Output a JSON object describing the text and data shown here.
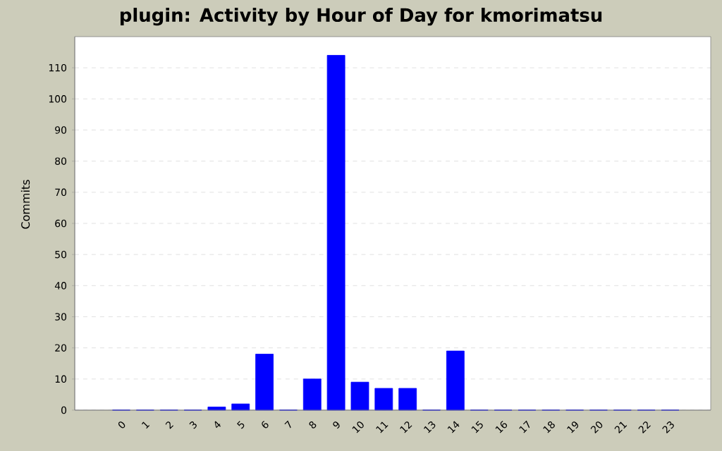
{
  "chart_data": {
    "type": "bar",
    "title": "plugin: Activity by Hour of Day for kmorimatsu",
    "ylabel": "Commits",
    "categories": [
      "0",
      "1",
      "2",
      "3",
      "4",
      "5",
      "6",
      "7",
      "8",
      "9",
      "10",
      "11",
      "12",
      "13",
      "14",
      "15",
      "16",
      "17",
      "18",
      "19",
      "20",
      "21",
      "22",
      "23"
    ],
    "values": [
      0,
      0,
      0,
      0,
      1,
      2,
      18,
      0,
      10,
      114,
      9,
      7,
      7,
      0,
      19,
      0,
      0,
      0,
      0,
      0,
      0,
      0,
      0,
      0
    ],
    "color": "#0000ff",
    "ylim": [
      0,
      120
    ],
    "yticks": [
      0,
      10,
      20,
      30,
      40,
      50,
      60,
      70,
      80,
      90,
      100,
      110
    ],
    "grid": "y"
  }
}
